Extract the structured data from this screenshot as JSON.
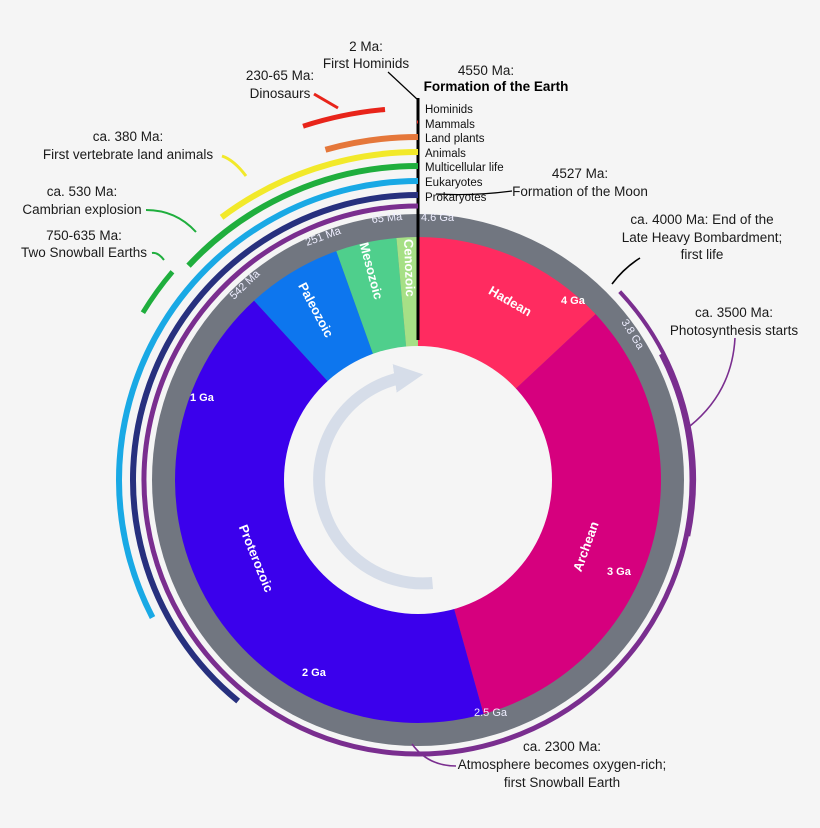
{
  "colors": {
    "background": "#f5f5f5",
    "ring": "#717680",
    "hadean": "#ff2b60",
    "archean": "#d6007e",
    "proterozoic": "#3b00ec",
    "paleozoic": "#0d76ee",
    "mesozoic": "#4fcf8c",
    "cenozoic": "#a6e086",
    "arrow": "#d6dde9",
    "hominids": "#e8241a",
    "mammals": "#e5773a",
    "land_plants": "#f2e92a",
    "animals": "#1fae3d",
    "multicellular": "#19a9e5",
    "eukaryotes": "#27307e",
    "prokaryotes": "#7a2e8f"
  },
  "eons": [
    {
      "name": "Hadean",
      "start_ga": 4.6,
      "end_ga": 4.0
    },
    {
      "name": "Archean",
      "start_ga": 4.0,
      "end_ga": 2.5
    },
    {
      "name": "Proterozoic",
      "start_ga": 2.5,
      "end_ga": 0.542
    },
    {
      "name": "Paleozoic",
      "start_ga": 0.542,
      "end_ga": 0.251
    },
    {
      "name": "Mesozoic",
      "start_ga": 0.251,
      "end_ga": 0.065
    },
    {
      "name": "Cenozoic",
      "start_ga": 0.065,
      "end_ga": 0.0
    }
  ],
  "ring_ticks": [
    "4.6 Ga",
    "3.8 Ga",
    "2.5 Ga",
    "542 Ma",
    "251 Ma",
    "65 Ma"
  ],
  "inner_ticks": [
    "4 Ga",
    "3 Ga",
    "2 Ga",
    "1 Ga"
  ],
  "lanes": [
    {
      "label": "Hominids",
      "start_ma": 2
    },
    {
      "label": "Mammals",
      "start_ma": 200
    },
    {
      "label": "Land plants",
      "start_ma": 470
    },
    {
      "label": "Animals",
      "start_ma": 600
    },
    {
      "label": "Multicellular life",
      "start_ma": 1500
    },
    {
      "label": "Eukaryotes",
      "start_ma": 1800
    },
    {
      "label": "Prokaryotes",
      "start_ma": 3800
    }
  ],
  "annotations": {
    "hominids_date": "2 Ma:",
    "hominids_text": "First Hominids",
    "dinosaurs_date": "230-65 Ma:",
    "dinosaurs_text": "Dinosaurs",
    "earth_date": "4550 Ma:",
    "earth_text": "Formation of the Earth",
    "vertebrate_date": "ca. 380 Ma:",
    "vertebrate_text": "First vertebrate land animals",
    "cambrian_date": "ca. 530 Ma:",
    "cambrian_text": "Cambrian explosion",
    "snowball_date": "750-635 Ma:",
    "snowball_text": "Two Snowball Earths",
    "moon_date": "4527 Ma:",
    "moon_text": "Formation of the Moon",
    "bombardment_line1": "ca. 4000 Ma: End of the",
    "bombardment_line2": "Late Heavy Bombardment;",
    "bombardment_line3": "first life",
    "photosynthesis_date": "ca. 3500 Ma:",
    "photosynthesis_text": "Photosynthesis starts",
    "oxygen_line1": "ca. 2300 Ma:",
    "oxygen_line2": "Atmosphere becomes oxygen-rich;",
    "oxygen_line3": "first Snowball Earth"
  }
}
